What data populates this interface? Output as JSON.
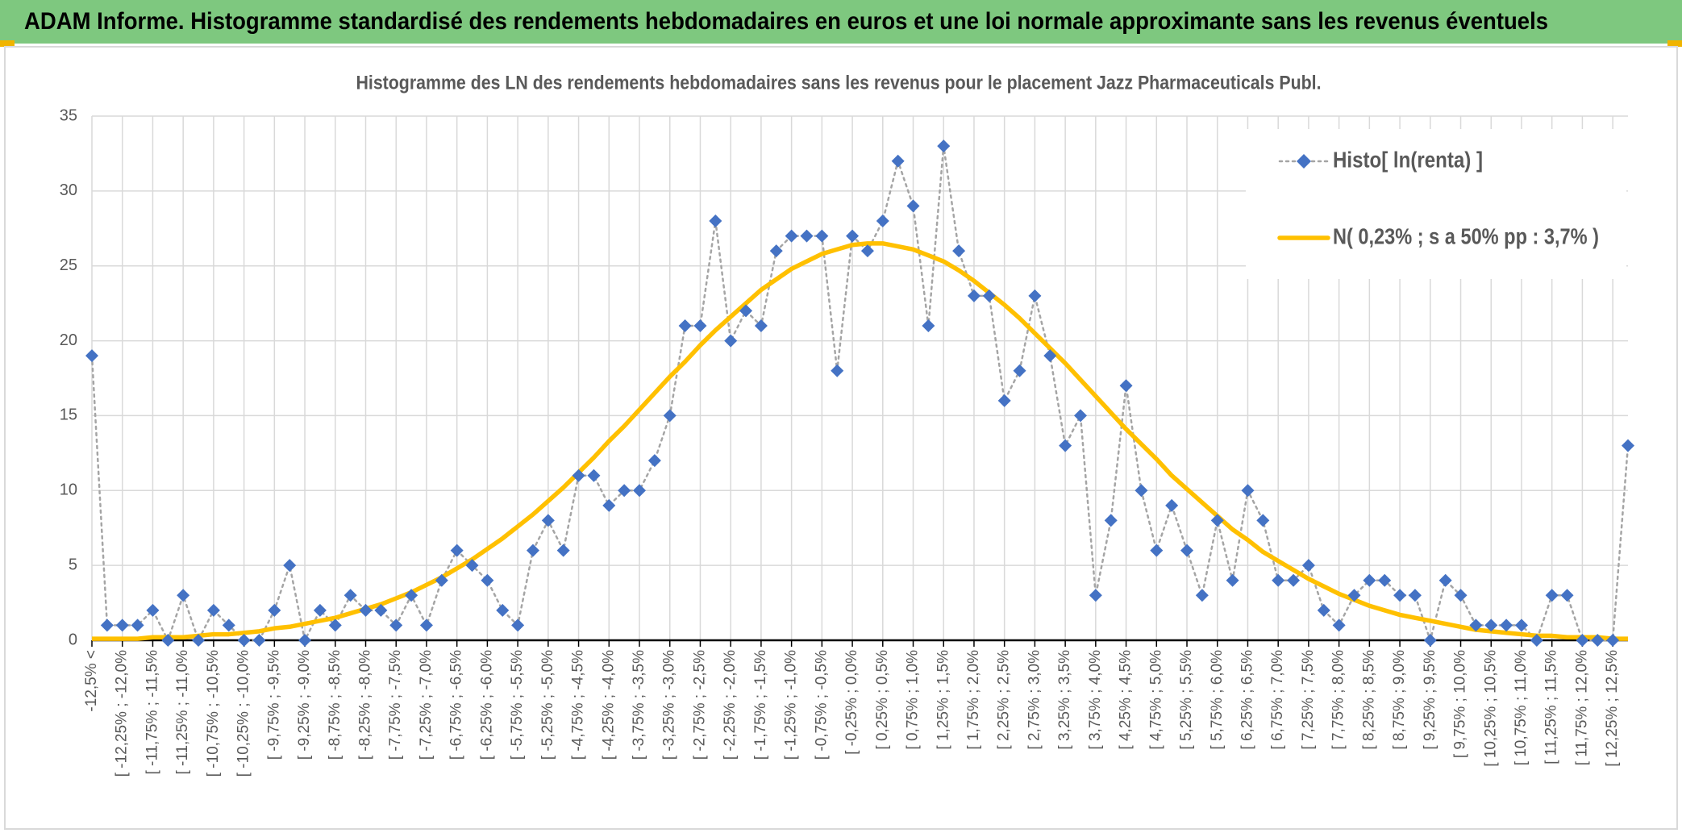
{
  "header": {
    "title": "ADAM Informe. Histogramme standardisé des rendements hebdomadaires en euros et une loi normale approximante sans les revenus éventuels"
  },
  "chart_data": {
    "type": "line",
    "title": "Histogramme des LN des rendements hebdomadaires sans les revenus pour le placement Jazz Pharmaceuticals Publ.",
    "categories": [
      "-12,5% <",
      null,
      "[ -12,25% ; -12,0%",
      null,
      "[ -11,75% ; -11,5%",
      null,
      "[ -11,25% ; -11,0%",
      null,
      "[ -10,75% ; -10,5%",
      null,
      "[ -10,25% ; -10,0%",
      null,
      "[ -9,75% ; -9,5%",
      null,
      "[ -9,25% ; -9,0%",
      null,
      "[ -8,75% ; -8,5%",
      null,
      "[ -8,25% ; -8,0%",
      null,
      "[ -7,75% ; -7,5%",
      null,
      "[ -7,25% ; -7,0%",
      null,
      "[ -6,75% ; -6,5%",
      null,
      "[ -6,25% ; -6,0%",
      null,
      "[ -5,75% ; -5,5%",
      null,
      "[ -5,25% ; -5,0%",
      null,
      "[ -4,75% ; -4,5%",
      null,
      "[ -4,25% ; -4,0%",
      null,
      "[ -3,75% ; -3,5%",
      null,
      "[ -3,25% ; -3,0%",
      null,
      "[ -2,75% ; -2,5%",
      null,
      "[ -2,25% ; -2,0%",
      null,
      "[ -1,75% ; -1,5%",
      null,
      "[ -1,25% ; -1,0%",
      null,
      "[ -0,75% ; -0,5%",
      null,
      "[ -0,25% ; 0,0%",
      null,
      "[ 0,25% ; 0,5%",
      null,
      "[ 0,75% ; 1,0%",
      null,
      "[ 1,25% ; 1,5%",
      null,
      "[ 1,75% ; 2,0%",
      null,
      "[ 2,25% ; 2,5%",
      null,
      "[ 2,75% ; 3,0%",
      null,
      "[ 3,25% ; 3,5%",
      null,
      "[ 3,75% ; 4,0%",
      null,
      "[ 4,25% ; 4,5%",
      null,
      "[ 4,75% ; 5,0%",
      null,
      "[ 5,25% ; 5,5%",
      null,
      "[ 5,75% ; 6,0%",
      null,
      "[ 6,25% ; 6,5%",
      null,
      "[ 6,75% ; 7,0%",
      null,
      "[ 7,25% ; 7,5%",
      null,
      "[ 7,75% ; 8,0%",
      null,
      "[ 8,25% ; 8,5%",
      null,
      "[ 8,75% ; 9,0%",
      null,
      "[ 9,25% ; 9,5%",
      null,
      "[ 9,75% ; 10,0%",
      null,
      "[ 10,25% ; 10,5%",
      null,
      "[ 10,75% ; 11,0%",
      null,
      "[ 11,25% ; 11,5%",
      null,
      "[ 11,75% ; 12,0%",
      null,
      "[ 12,25% ; 12,5%",
      null
    ],
    "series": [
      {
        "name": "Histo[ ln(renta) ]",
        "color": "#4472c4",
        "marker": "diamond",
        "line_color": "#a5a5a5",
        "line_style": "dotted",
        "values": [
          19,
          1,
          1,
          1,
          2,
          0,
          3,
          0,
          2,
          1,
          0,
          0,
          2,
          5,
          0,
          2,
          1,
          3,
          2,
          2,
          1,
          3,
          1,
          4,
          6,
          5,
          4,
          2,
          1,
          6,
          8,
          6,
          11,
          11,
          9,
          10,
          10,
          12,
          15,
          21,
          21,
          28,
          20,
          22,
          21,
          26,
          27,
          27,
          27,
          18,
          27,
          26,
          28,
          32,
          29,
          21,
          33,
          26,
          23,
          23,
          16,
          18,
          23,
          19,
          13,
          15,
          3,
          8,
          17,
          10,
          6,
          9,
          6,
          3,
          8,
          4,
          10,
          8,
          4,
          4,
          5,
          2,
          1,
          3,
          4,
          4,
          3,
          3,
          0,
          4,
          3,
          1,
          1,
          1,
          1,
          0,
          3,
          3,
          0,
          0,
          0,
          13
        ]
      },
      {
        "name": "N( 0,23% ; s a 50% pp : 3,7% )",
        "color": "#ffc000",
        "line_style": "solid",
        "values": [
          0.1,
          0.1,
          0.1,
          0.1,
          0.2,
          0.2,
          0.2,
          0.3,
          0.4,
          0.4,
          0.5,
          0.6,
          0.8,
          0.9,
          1.1,
          1.3,
          1.5,
          1.8,
          2.1,
          2.4,
          2.8,
          3.2,
          3.7,
          4.2,
          4.8,
          5.4,
          6.1,
          6.8,
          7.6,
          8.4,
          9.3,
          10.2,
          11.2,
          12.2,
          13.3,
          14.3,
          15.4,
          16.5,
          17.6,
          18.6,
          19.7,
          20.7,
          21.6,
          22.5,
          23.4,
          24.1,
          24.8,
          25.3,
          25.8,
          26.1,
          26.4,
          26.5,
          26.5,
          26.3,
          26.1,
          25.7,
          25.3,
          24.7,
          24.0,
          23.2,
          22.4,
          21.5,
          20.5,
          19.5,
          18.5,
          17.4,
          16.3,
          15.2,
          14.1,
          13.1,
          12.1,
          11.0,
          10.1,
          9.2,
          8.3,
          7.4,
          6.7,
          5.9,
          5.3,
          4.7,
          4.1,
          3.6,
          3.1,
          2.7,
          2.3,
          2.0,
          1.7,
          1.5,
          1.3,
          1.1,
          0.9,
          0.7,
          0.6,
          0.5,
          0.4,
          0.3,
          0.3,
          0.2,
          0.2,
          0.2,
          0.1,
          0.1
        ]
      }
    ],
    "ylim": [
      0,
      35
    ],
    "yticks": [
      0,
      5,
      10,
      15,
      20,
      25,
      30,
      35
    ],
    "grid": true,
    "legend": "top-right"
  }
}
